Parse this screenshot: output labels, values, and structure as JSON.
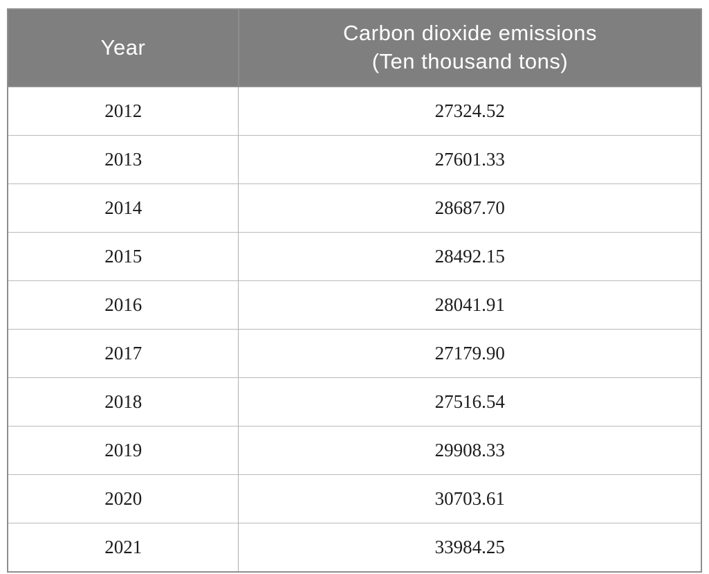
{
  "table": {
    "header": {
      "year_label": "Year",
      "emissions_label_line1": "Carbon dioxide emissions",
      "emissions_label_line2": "(Ten thousand tons)"
    },
    "rows": [
      {
        "year": "2012",
        "value": "27324.52"
      },
      {
        "year": "2013",
        "value": "27601.33"
      },
      {
        "year": "2014",
        "value": "28687.70"
      },
      {
        "year": "2015",
        "value": "28492.15"
      },
      {
        "year": "2016",
        "value": "28041.91"
      },
      {
        "year": "2017",
        "value": "27179.90"
      },
      {
        "year": "2018",
        "value": "27516.54"
      },
      {
        "year": "2019",
        "value": "29908.33"
      },
      {
        "year": "2020",
        "value": "30703.61"
      },
      {
        "year": "2021",
        "value": "33984.25"
      }
    ]
  },
  "colors": {
    "header_bg": "#7f7f7f",
    "header_text": "#ffffff",
    "body_text": "#1c1c1c",
    "outer_border": "#8e8e8e",
    "row_border": "#b9b9b9"
  },
  "chart_data": {
    "type": "table",
    "title": "",
    "columns": [
      "Year",
      "Carbon dioxide emissions (Ten thousand tons)"
    ],
    "categories": [
      "2012",
      "2013",
      "2014",
      "2015",
      "2016",
      "2017",
      "2018",
      "2019",
      "2020",
      "2021"
    ],
    "values": [
      27324.52,
      27601.33,
      28687.7,
      28492.15,
      28041.91,
      27179.9,
      27516.54,
      29908.33,
      30703.61,
      33984.25
    ],
    "xlabel": "Year",
    "ylabel": "Carbon dioxide emissions (Ten thousand tons)"
  }
}
